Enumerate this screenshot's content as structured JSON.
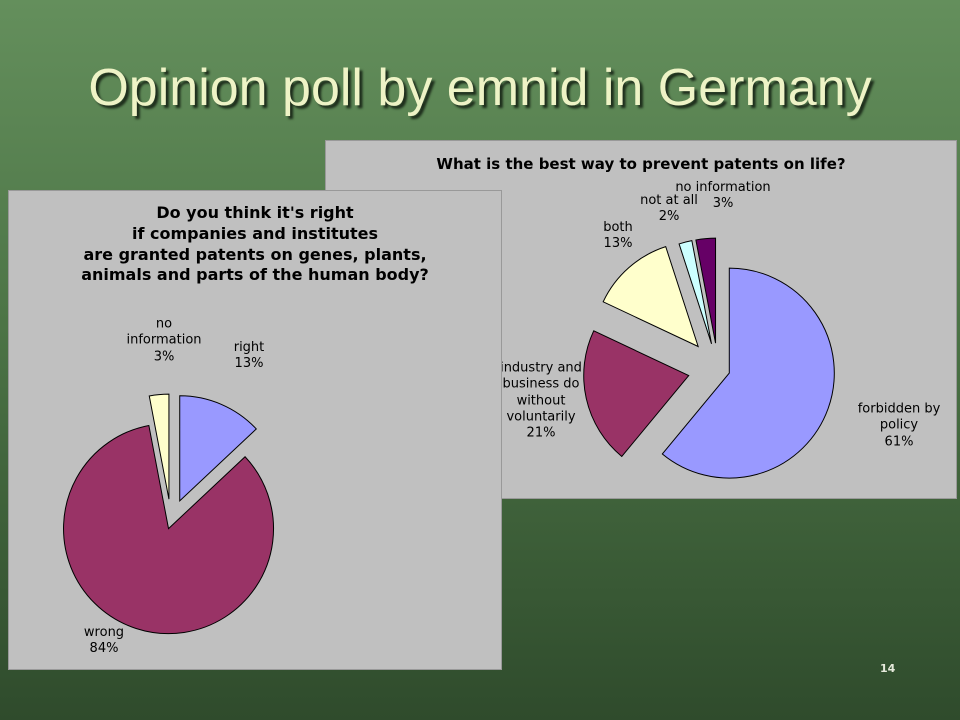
{
  "title": "Opinion poll by emnid in Germany",
  "page_number": "14",
  "chart_data": [
    {
      "type": "pie",
      "title": "Do you think it's right\nif companies and institutes\nare granted patents on genes, plants,\nanimals and parts of the human body?",
      "categories": [
        "right",
        "wrong",
        "no information"
      ],
      "values": [
        13,
        84,
        3
      ],
      "value_labels": [
        "13%",
        "84%",
        "3%"
      ],
      "colors": [
        "#9999ff",
        "#993366",
        "#ffffcc"
      ]
    },
    {
      "type": "pie",
      "title": "What is the best way to prevent patents on life?",
      "categories": [
        "forbidden by policy",
        "industry and business do without voluntarily",
        "both",
        "not at all",
        "no information"
      ],
      "values": [
        61,
        21,
        13,
        2,
        3
      ],
      "value_labels": [
        "61%",
        "21%",
        "13%",
        "2%",
        "3%"
      ],
      "colors": [
        "#9999ff",
        "#993366",
        "#ffffcc",
        "#ccffff",
        "#660066"
      ]
    }
  ]
}
